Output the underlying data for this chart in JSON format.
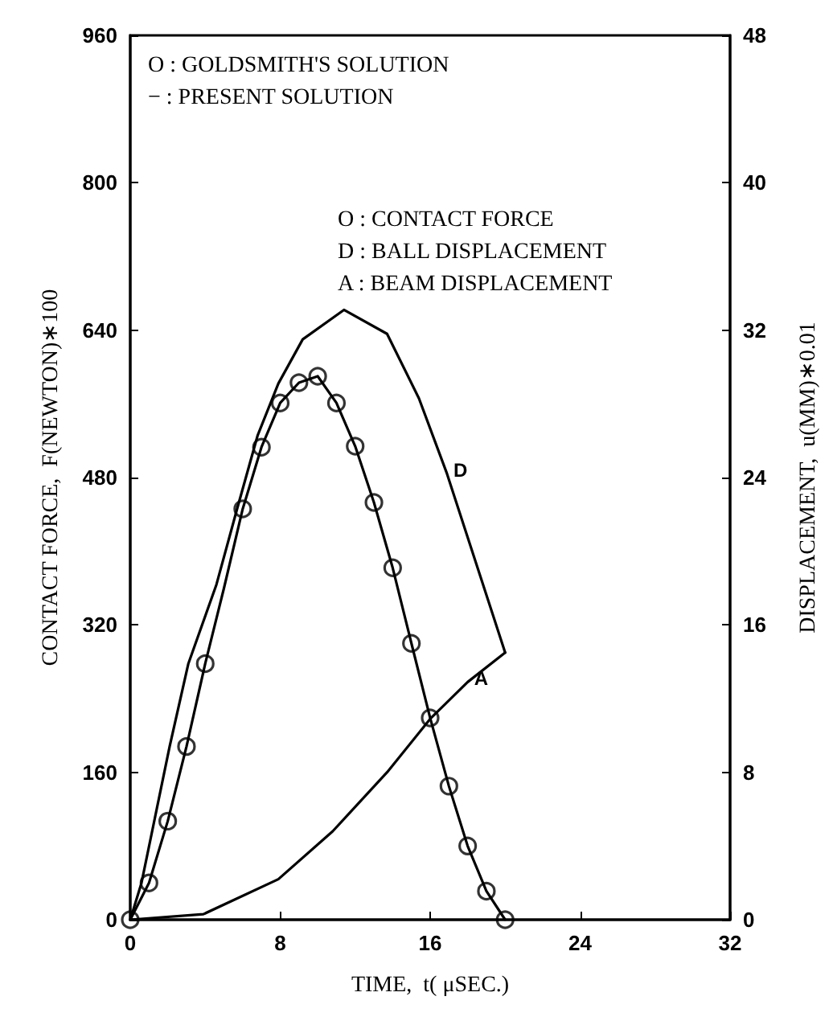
{
  "chart_data": {
    "type": "line",
    "xlabel": "TIME,  t( μSEC.)",
    "ylabel": "CONTACT FORCE,  F(NEWTON)∗100",
    "y2label": "DISPLACEMENT,  u(MM)∗0.01",
    "xlim": [
      0,
      32
    ],
    "xticks": [
      0,
      8,
      16,
      24,
      32
    ],
    "ylim": [
      0,
      960
    ],
    "yticks": [
      0,
      160,
      320,
      480,
      640,
      800,
      960
    ],
    "y2lim": [
      0,
      48
    ],
    "y2ticks": [
      0,
      8,
      16,
      24,
      32,
      40,
      48
    ],
    "grid": false,
    "annotations": [
      "O : GOLDSMITH'S SOLUTION",
      "− : PRESENT SOLUTION",
      "O : CONTACT FORCE",
      "D : BALL DISPLACEMENT",
      "A : BEAM DISPLACEMENT",
      {
        "text": "D",
        "x": 16.9,
        "y": 484
      },
      {
        "text": "A",
        "x": 18,
        "y": 258
      }
    ],
    "series": [
      {
        "marker": "none",
        "color": "#000000",
        "x": [
          0,
          1,
          2,
          3,
          4,
          5,
          6,
          7,
          8,
          9,
          10,
          11,
          12,
          13,
          14,
          15,
          16,
          17,
          18,
          19,
          20
        ],
        "values": [
          0,
          40,
          107,
          188,
          278,
          360,
          446,
          513,
          561,
          583,
          590,
          561,
          514,
          453,
          382,
          300,
          219,
          145,
          80,
          31,
          0
        ]
      },
      {
        "type": "scatter",
        "marker": "circle",
        "color": "#000000",
        "x": [
          0,
          1,
          2,
          3,
          4,
          6,
          7,
          8,
          9,
          10,
          11,
          12,
          13,
          14,
          15,
          16,
          17,
          18,
          19,
          20
        ],
        "values": [
          0,
          40,
          107,
          188,
          278,
          446,
          513,
          561,
          583,
          590,
          561,
          514,
          453,
          382,
          300,
          219,
          145,
          80,
          31,
          0
        ]
      },
      {
        "type": "line",
        "marker": "none",
        "color": "#000000",
        "axis": "y2",
        "x": [
          0,
          0.6,
          2.1,
          3.1,
          4.6,
          5.7,
          6.8,
          7.9,
          9.2,
          11.4,
          13.7,
          15.4,
          16.9,
          20
        ],
        "values": [
          0,
          2,
          9.4,
          13.9,
          18.2,
          22.3,
          26.3,
          29.1,
          31.5,
          33.1,
          31.8,
          28.3,
          24.2,
          14.5
        ]
      },
      {
        "type": "line",
        "marker": "none",
        "color": "#000000",
        "axis": "y2",
        "x": [
          0,
          3.9,
          7.9,
          10.8,
          13.7,
          16,
          18,
          20
        ],
        "values": [
          0,
          0.3,
          2.2,
          4.8,
          8,
          10.9,
          12.9,
          14.5
        ]
      }
    ]
  }
}
